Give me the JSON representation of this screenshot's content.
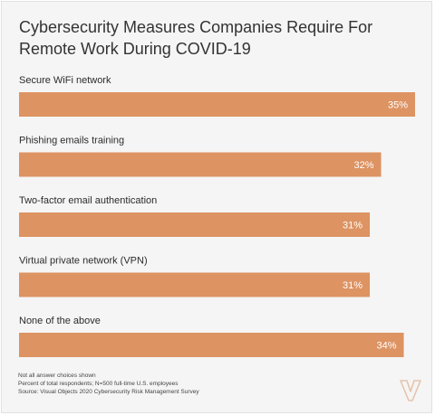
{
  "chart_data": {
    "type": "bar",
    "orientation": "horizontal",
    "title": "Cybersecurity Measures Companies Require For Remote Work During COVID-19",
    "categories": [
      "Secure WiFi network",
      "Phishing emails training",
      "Two-factor email authentication",
      "Virtual private network (VPN)",
      "None of the above"
    ],
    "values": [
      35,
      32,
      31,
      31,
      34
    ],
    "value_labels": [
      "35%",
      "32%",
      "31%",
      "31%",
      "34%"
    ],
    "unit": "%",
    "bar_color": "#dd9362",
    "grid": false,
    "legend": "none"
  },
  "footnotes": {
    "line1": "Not all answer choices shown",
    "line2": "Percent of total respondents; N=500 full-time U.S. employees",
    "line3": "Source: Visual Objects 2020 Cybersecurity Risk Management Survey"
  },
  "logo_icon": "visual-objects-logo-icon",
  "colors": {
    "bar": "#dd9362",
    "background": "#f6f5f5",
    "text": "#333333",
    "value_text": "#ffffff"
  }
}
